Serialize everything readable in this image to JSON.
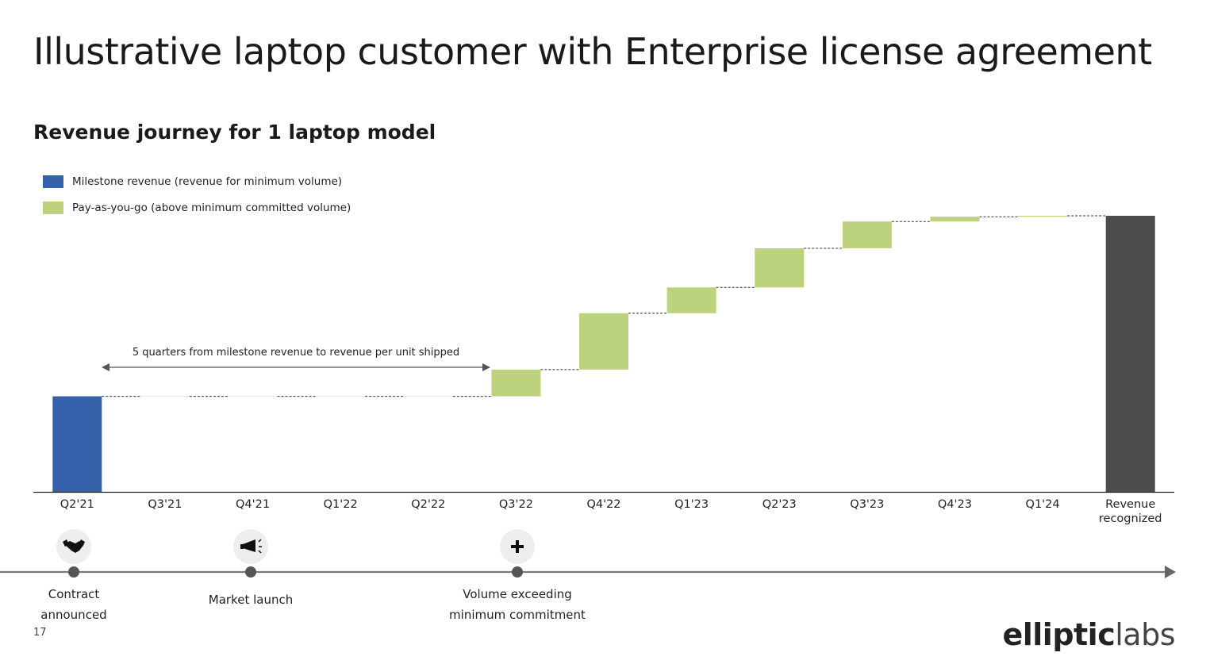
{
  "page": {
    "title": "Illustrative laptop customer with Enterprise license agreement",
    "page_number": "17",
    "logo_text_bold": "elliptic",
    "logo_text_light": "labs"
  },
  "chart_data": {
    "type": "waterfall",
    "subtitle": "Revenue journey for 1 laptop model",
    "categories": [
      "Q2'21",
      "Q3'21",
      "Q4'21",
      "Q1'22",
      "Q2'22",
      "Q3'22",
      "Q4'22",
      "Q1'23",
      "Q2'23",
      "Q3'23",
      "Q4'23",
      "Q1'24",
      "Revenue recognized"
    ],
    "legend": [
      {
        "name": "Milestone revenue (revenue for minimum volume)",
        "color": "#3461a9"
      },
      {
        "name": "Pay-as-you-go (above minimum committed volume)",
        "color": "#bcd27d"
      }
    ],
    "total_color": "#4d4d4d",
    "series": [
      {
        "name": "Milestone revenue (revenue for minimum volume)",
        "values": [
          100,
          0,
          0,
          0,
          0,
          0,
          0,
          0,
          0,
          0,
          0,
          0,
          0
        ]
      },
      {
        "name": "Pay-as-you-go (above minimum committed volume)",
        "values": [
          0,
          0,
          0,
          0,
          0,
          28,
          59,
          27,
          41,
          28,
          5,
          1,
          0
        ]
      }
    ],
    "total": 289,
    "ylim": [
      0,
      300
    ],
    "annotation": "5 quarters from milestone revenue to revenue per unit shipped",
    "timeline": [
      {
        "label": "Contract announced",
        "category": "Q2'21",
        "icon": "handshake-icon"
      },
      {
        "label": "Market launch",
        "category": "Q4'21",
        "icon": "megaphone-icon"
      },
      {
        "label": "Volume exceeding minimum commitment",
        "category": "Q3'22",
        "icon": "plus-icon"
      }
    ]
  }
}
